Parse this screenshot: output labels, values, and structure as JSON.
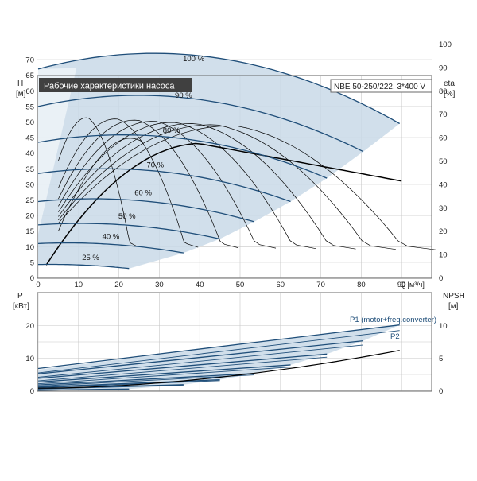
{
  "colors": {
    "curve": "#1f4e79",
    "region": "#c9d9e8",
    "region_light": "#dfe8f1",
    "grid": "#c8c8c8",
    "efficiency": "#000000",
    "title_bg": "#404040",
    "title_fg": "#ffffff"
  },
  "chart_data": [
    {
      "type": "line",
      "title": "Рабочие характеристики насоса",
      "subtitle": "NBE 50-250/222, 3*400 V",
      "ylabel": "H",
      "yunit": "[м]",
      "y2label": "eta",
      "y2unit": "[%]",
      "xlabel": "Q [м³/ч]",
      "xlim": [
        0,
        95
      ],
      "ylim": [
        0,
        75
      ],
      "y2lim": [
        0,
        100
      ],
      "xticks": [
        0,
        10,
        20,
        30,
        40,
        50,
        60,
        70,
        80,
        90
      ],
      "yticks": [
        0,
        5,
        10,
        15,
        20,
        25,
        30,
        35,
        40,
        45,
        50,
        55,
        60,
        65,
        70
      ],
      "y2ticks": [
        0,
        10,
        20,
        30,
        40,
        50,
        60,
        70,
        80,
        90,
        100
      ],
      "grid": true,
      "head_series": [
        {
          "name": "100 %",
          "shutoff": 67,
          "qmax": 89.5,
          "hmax": 49.5
        },
        {
          "name": "90 %",
          "shutoff": 55,
          "qmax": 80.5,
          "hmax": 40.5
        },
        {
          "name": "80 %",
          "shutoff": 43.5,
          "qmax": 71.5,
          "hmax": 32
        },
        {
          "name": "70 %",
          "shutoff": 33.5,
          "qmax": 62.5,
          "hmax": 24.5
        },
        {
          "name": "60 %",
          "shutoff": 24.5,
          "qmax": 53.5,
          "hmax": 18
        },
        {
          "name": "50 %",
          "shutoff": 17,
          "qmax": 45,
          "hmax": 12.5
        },
        {
          "name": "40 %",
          "shutoff": 11,
          "qmax": 36,
          "hmax": 8
        },
        {
          "name": "25 %",
          "shutoff": 4.3,
          "qmax": 22.5,
          "hmax": 3
        }
      ],
      "efficiency_peak_percent": 70,
      "efficiency_end_percent": 58
    },
    {
      "type": "line",
      "ylabel": "P",
      "yunit": "[кВт]",
      "y2label": "NPSH",
      "y2unit": "[м]",
      "xlim": [
        0,
        95
      ],
      "ylim": [
        0,
        24
      ],
      "y2lim": [
        0,
        12
      ],
      "yticks": [
        0,
        10,
        20
      ],
      "y2ticks": [
        0,
        5,
        10
      ],
      "grid": true,
      "power_series": [
        {
          "name": "P1 (motor+freq.converter)",
          "p0": 6.5,
          "p1": 20.2
        },
        {
          "name": "P2",
          "p0": 5.2,
          "p1": 18.5
        }
      ],
      "npsh_series": {
        "n0": 0.4,
        "n1": 6.2
      }
    }
  ]
}
